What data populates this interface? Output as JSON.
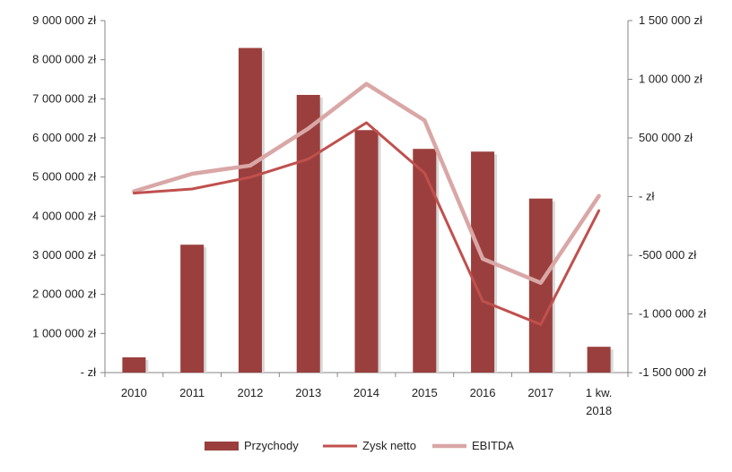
{
  "chart_data": {
    "type": "bar",
    "categories": [
      "2010",
      "2011",
      "2012",
      "2013",
      "2014",
      "2015",
      "2016",
      "2017",
      "1 kw. 2018"
    ],
    "series": [
      {
        "name": "Przychody",
        "type": "bar",
        "axis": "left",
        "color": "#9a3f3d",
        "values": [
          390000,
          3270000,
          8300000,
          7100000,
          6200000,
          5720000,
          5650000,
          4450000,
          660000
        ]
      },
      {
        "name": "Zysk netto",
        "type": "line",
        "axis": "right",
        "color": "#c0504d",
        "values": [
          30000,
          65000,
          165000,
          320000,
          630000,
          200000,
          -890000,
          -1090000,
          -120000
        ]
      },
      {
        "name": "EBITDA",
        "type": "line",
        "axis": "right",
        "color": "#d9a7a6",
        "values": [
          45000,
          195000,
          265000,
          580000,
          960000,
          650000,
          -530000,
          -735000,
          5000
        ]
      }
    ],
    "y_left": {
      "min": 0,
      "max": 9000000,
      "ticks": [
        {
          "value": 9000000,
          "label": "9 000 000 zł"
        },
        {
          "value": 8000000,
          "label": "8 000 000 zł"
        },
        {
          "value": 7000000,
          "label": "7 000 000 zł"
        },
        {
          "value": 6000000,
          "label": "6 000 000 zł"
        },
        {
          "value": 5000000,
          "label": "5 000 000 zł"
        },
        {
          "value": 4000000,
          "label": "4 000 000 zł"
        },
        {
          "value": 3000000,
          "label": "3 000 000 zł"
        },
        {
          "value": 2000000,
          "label": "2 000 000 zł"
        },
        {
          "value": 1000000,
          "label": "1 000 000 zł"
        },
        {
          "value": 0,
          "label": "-   zł"
        }
      ]
    },
    "y_right": {
      "min": -1500000,
      "max": 1500000,
      "ticks": [
        {
          "value": 1500000,
          "label": "1 500 000 zł"
        },
        {
          "value": 1000000,
          "label": "1 000 000 zł"
        },
        {
          "value": 500000,
          "label": "500 000 zł"
        },
        {
          "value": 0,
          "label": "-   zł"
        },
        {
          "value": -500000,
          "label": "-500 000 zł"
        },
        {
          "value": -1000000,
          "label": "-1 000 000 zł"
        },
        {
          "value": -1500000,
          "label": "-1 500 000 zł"
        }
      ]
    },
    "grid": false,
    "legend_position": "bottom"
  }
}
